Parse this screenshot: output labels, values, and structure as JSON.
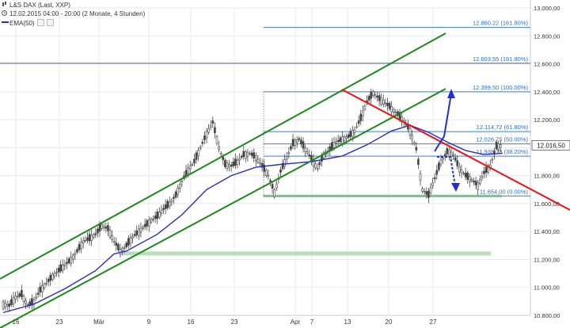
{
  "header": {
    "title": "L&S DAX (Last, XXP)",
    "subtitle": "12.02.2015 04:00 - 20:00 (2 Monate, 4 Stunden)",
    "indicator": "EMA(50)"
  },
  "chart_data": {
    "type": "candlestick",
    "ylim": [
      10800,
      13000
    ],
    "y_ticks": [
      "13.000,00",
      "12.800,00",
      "12.600,00",
      "12.400,00",
      "12.200,00",
      "12.000,00",
      "11.800,00",
      "11.600,00",
      "11.400,00",
      "11.200,00",
      "11.000,00",
      "10.800,00"
    ],
    "x_ticks": [
      "16",
      "23",
      "Mär",
      "9",
      "16",
      "23",
      "Apr",
      "7",
      "13",
      "20",
      "27"
    ],
    "last_price": "12.016,50",
    "fibonacci": [
      {
        "label": "12.860,22 (161.80%)",
        "value": 12860.22
      },
      {
        "label": "12.603,55 (161.80%)",
        "value": 12603.55
      },
      {
        "label": "12.399,50 (100.00%)",
        "value": 12399.5
      },
      {
        "label": "12.114,72 (61.80%)",
        "value": 12114.72
      },
      {
        "label": "12.026,75 (50.00%)",
        "value": 12026.75
      },
      {
        "label": "11.938,78 (38.20%)",
        "value": 11938.78
      },
      {
        "label": "11.654,00 (0.00%)",
        "value": 11654.0
      }
    ],
    "support_zones": [
      11654,
      11240
    ],
    "price_path": [
      [
        0,
        10880
      ],
      [
        2,
        10870
      ],
      [
        4,
        10930
      ],
      [
        6,
        10950
      ],
      [
        8,
        10870
      ],
      [
        10,
        10900
      ],
      [
        12,
        10980
      ],
      [
        14,
        11030
      ],
      [
        16,
        11080
      ],
      [
        18,
        11120
      ],
      [
        20,
        11160
      ],
      [
        22,
        11200
      ],
      [
        24,
        11260
      ],
      [
        26,
        11330
      ],
      [
        28,
        11350
      ],
      [
        30,
        11380
      ],
      [
        32,
        11440
      ],
      [
        34,
        11420
      ],
      [
        36,
        11330
      ],
      [
        38,
        11260
      ],
      [
        40,
        11300
      ],
      [
        42,
        11360
      ],
      [
        44,
        11400
      ],
      [
        46,
        11440
      ],
      [
        48,
        11480
      ],
      [
        50,
        11510
      ],
      [
        52,
        11560
      ],
      [
        54,
        11600
      ],
      [
        56,
        11660
      ],
      [
        58,
        11760
      ],
      [
        60,
        11840
      ],
      [
        62,
        11900
      ],
      [
        64,
        12000
      ],
      [
        66,
        12100
      ],
      [
        68,
        12180
      ],
      [
        70,
        12000
      ],
      [
        72,
        11880
      ],
      [
        74,
        11870
      ],
      [
        76,
        11900
      ],
      [
        78,
        11950
      ],
      [
        80,
        11960
      ],
      [
        82,
        11930
      ],
      [
        84,
        11870
      ],
      [
        86,
        11800
      ],
      [
        88,
        11680
      ],
      [
        90,
        11830
      ],
      [
        92,
        11930
      ],
      [
        94,
        12030
      ],
      [
        96,
        12060
      ],
      [
        98,
        11990
      ],
      [
        100,
        11920
      ],
      [
        102,
        11850
      ],
      [
        104,
        11950
      ],
      [
        106,
        11990
      ],
      [
        108,
        12040
      ],
      [
        110,
        12060
      ],
      [
        112,
        12080
      ],
      [
        114,
        12120
      ],
      [
        116,
        12210
      ],
      [
        118,
        12330
      ],
      [
        120,
        12390
      ],
      [
        122,
        12350
      ],
      [
        124,
        12320
      ],
      [
        126,
        12280
      ],
      [
        128,
        12240
      ],
      [
        130,
        12190
      ],
      [
        132,
        12120
      ],
      [
        134,
        11990
      ],
      [
        136,
        11700
      ],
      [
        138,
        11660
      ],
      [
        140,
        11780
      ],
      [
        142,
        11900
      ],
      [
        144,
        11970
      ],
      [
        146,
        11950
      ],
      [
        148,
        11850
      ],
      [
        150,
        11800
      ],
      [
        152,
        11770
      ],
      [
        154,
        11730
      ],
      [
        156,
        11820
      ],
      [
        158,
        11870
      ],
      [
        160,
        12010
      ],
      [
        162,
        12016
      ]
    ],
    "ema_path": [
      [
        0,
        10820
      ],
      [
        10,
        10880
      ],
      [
        20,
        10990
      ],
      [
        30,
        11120
      ],
      [
        36,
        11240
      ],
      [
        40,
        11260
      ],
      [
        50,
        11380
      ],
      [
        58,
        11520
      ],
      [
        66,
        11700
      ],
      [
        74,
        11800
      ],
      [
        82,
        11860
      ],
      [
        90,
        11880
      ],
      [
        100,
        11900
      ],
      [
        110,
        11940
      ],
      [
        118,
        12020
      ],
      [
        126,
        12120
      ],
      [
        132,
        12160
      ],
      [
        138,
        12110
      ],
      [
        144,
        12040
      ],
      [
        150,
        11980
      ],
      [
        156,
        11950
      ],
      [
        162,
        11960
      ]
    ],
    "x_range": [
      0,
      170
    ]
  },
  "colors": {
    "grid": "#e6e9ef",
    "channel": "#1a8a1a",
    "resistance": "#ee1111",
    "ema": "#2a2acc",
    "fib_line": "#3a7fd0",
    "fib_text": "#2a6fc0",
    "zone": "#b9dfb9",
    "arrow": "#1f2fd8",
    "candle": "#444444",
    "axis_text": "#333333"
  }
}
